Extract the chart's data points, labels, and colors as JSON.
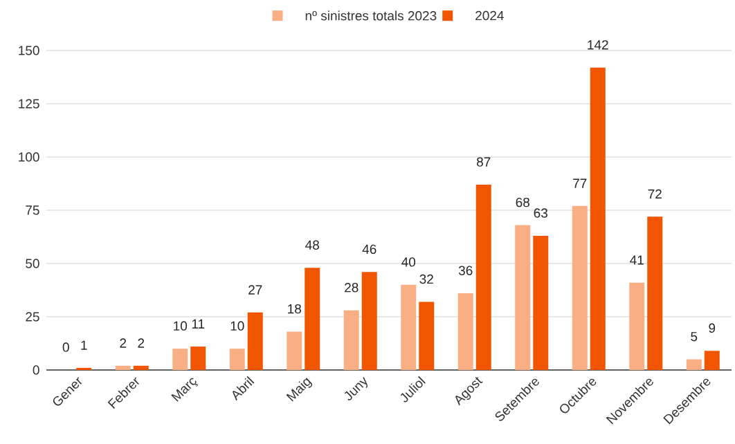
{
  "chart_data": {
    "type": "bar",
    "categories": [
      "Gener",
      "Febrer",
      "Març",
      "Abril",
      "Maig",
      "Juny",
      "Juliol",
      "Agost",
      "Setembre",
      "Octubre",
      "Novembre",
      "Desembre"
    ],
    "series": [
      {
        "name": "nº sinistres totals 2023",
        "color": "#f9ae84",
        "values": [
          0,
          2,
          10,
          10,
          18,
          28,
          40,
          36,
          68,
          77,
          41,
          5
        ]
      },
      {
        "name": "2024",
        "color": "#f25500",
        "values": [
          1,
          2,
          11,
          27,
          48,
          46,
          32,
          87,
          63,
          142,
          72,
          9
        ]
      }
    ],
    "ylim": [
      0,
      150
    ],
    "yticks": [
      0,
      25,
      50,
      75,
      100,
      125,
      150
    ],
    "grid": "y",
    "legend": "top",
    "data_labels": true
  }
}
